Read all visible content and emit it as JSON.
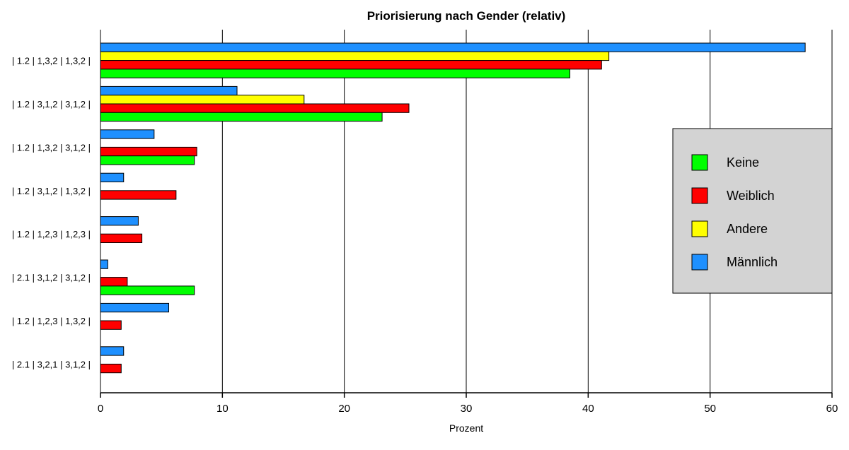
{
  "chart_data": {
    "type": "bar",
    "orientation": "horizontal",
    "title": "Priorisierung nach Gender (relativ)",
    "xlabel": "Prozent",
    "ylabel": "",
    "xlim": [
      0,
      60
    ],
    "xticks": [
      0,
      10,
      20,
      30,
      40,
      50,
      60
    ],
    "grid": "vertical",
    "legend_position": "right",
    "categories": [
      "| 1.2 | 1,3,2 | 1,3,2 |",
      "| 1.2 | 3,1,2 | 3,1,2 |",
      "| 1.2 | 1,3,2 | 3,1,2 |",
      "| 1.2 | 3,1,2 | 1,3,2 |",
      "| 1.2 | 1,2,3 | 1,2,3 |",
      "| 2.1 | 3,1,2 | 3,1,2 |",
      "| 1.2 | 1,2,3 | 1,3,2 |",
      "| 2.1 | 3,2,1 | 3,1,2 |"
    ],
    "series": [
      {
        "name": "Keine",
        "color": "#00ff00",
        "values": [
          38.5,
          23.1,
          7.7,
          0,
          0,
          7.7,
          0,
          0
        ]
      },
      {
        "name": "Weiblich",
        "color": "#ff0000",
        "values": [
          41.1,
          25.3,
          7.9,
          6.2,
          3.4,
          2.2,
          1.7,
          1.7
        ]
      },
      {
        "name": "Andere",
        "color": "#ffff00",
        "values": [
          41.7,
          16.7,
          0,
          0,
          0,
          0,
          0,
          0
        ]
      },
      {
        "name": "Männlich",
        "color": "#1e90ff",
        "values": [
          57.8,
          11.2,
          4.4,
          1.9,
          3.1,
          0.6,
          5.6,
          1.9
        ]
      }
    ]
  }
}
